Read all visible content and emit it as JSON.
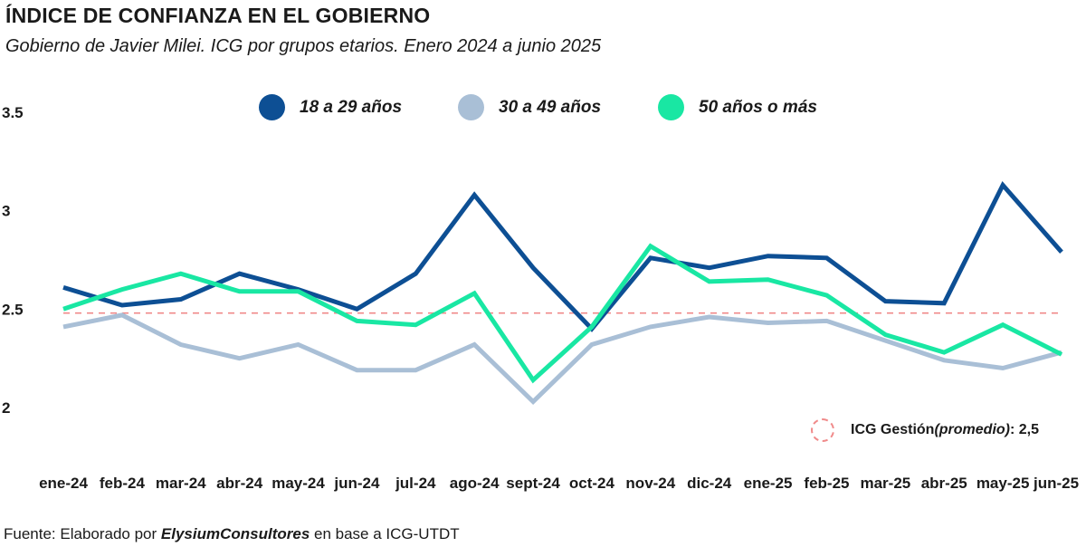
{
  "header": {
    "title": "ÍNDICE DE CONFIANZA EN EL GOBIERNO",
    "subtitle": "Gobierno de Javier Milei. ICG por grupos etarios. Enero 2024 a junio 2025"
  },
  "footer": {
    "source_prefix": "Fuente: Elaborado por ",
    "source_org": "ElysiumConsultores",
    "source_suffix": " en base a ICG-UTDT"
  },
  "reference_line": {
    "label_main": "ICG Gestión ",
    "label_italic": "(promedio)",
    "label_value": " : 2,5",
    "value": 2.48,
    "color": "#f08a8a"
  },
  "chart_data": {
    "type": "line",
    "categories": [
      "ene-24",
      "feb-24",
      "mar-24",
      "abr-24",
      "may-24",
      "jun-24",
      "jul-24",
      "ago-24",
      "sept-24",
      "oct-24",
      "nov-24",
      "dic-24",
      "ene-25",
      "feb-25",
      "mar-25",
      "abr-25",
      "may-25",
      "jun-25"
    ],
    "y_ticks": [
      "2",
      "2.5",
      "3",
      "3.5"
    ],
    "ylim": [
      2,
      3.5
    ],
    "grid": false,
    "legend_position": "top",
    "series": [
      {
        "name": "18 a 29 años",
        "color": "#0d4f94",
        "values": [
          2.61,
          2.52,
          2.55,
          2.68,
          2.6,
          2.5,
          2.68,
          3.08,
          2.71,
          2.4,
          2.76,
          2.71,
          2.77,
          2.76,
          2.54,
          2.53,
          3.13,
          2.79
        ]
      },
      {
        "name": "30 a 49 años",
        "color": "#a9bfd6",
        "values": [
          2.41,
          2.47,
          2.32,
          2.25,
          2.32,
          2.19,
          2.19,
          2.32,
          2.03,
          2.32,
          2.41,
          2.46,
          2.43,
          2.44,
          2.34,
          2.24,
          2.2,
          2.28
        ]
      },
      {
        "name": "50 años o más",
        "color": "#19e7a3",
        "values": [
          2.5,
          2.6,
          2.68,
          2.59,
          2.59,
          2.44,
          2.42,
          2.58,
          2.14,
          2.41,
          2.82,
          2.64,
          2.65,
          2.57,
          2.37,
          2.28,
          2.42,
          2.27
        ]
      }
    ]
  }
}
